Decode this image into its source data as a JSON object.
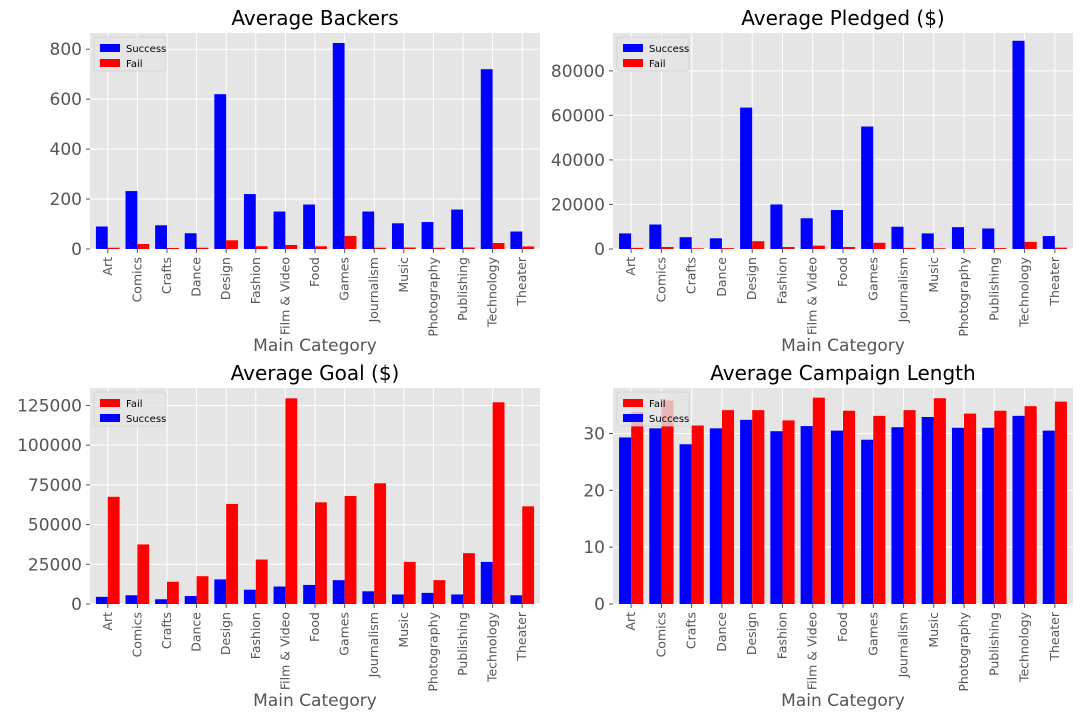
{
  "colors": {
    "success": "#0000ff",
    "fail": "#ff0000",
    "panel_bg": "#e5e5e5",
    "grid": "#ffffff",
    "text": "#555555",
    "title": "#000000"
  },
  "chart_data": [
    {
      "type": "bar",
      "title": "Average Backers",
      "xlabel": "Main Category",
      "ylabel": "",
      "grid": true,
      "legend": {
        "position": "top-left",
        "entries": [
          "Success",
          "Fail"
        ]
      },
      "ylim": [
        0,
        865
      ],
      "yticks": [
        0,
        200,
        400,
        600,
        800
      ],
      "categories": [
        "Art",
        "Comics",
        "Crafts",
        "Dance",
        "Design",
        "Fashion",
        "Film & Video",
        "Food",
        "Games",
        "Journalism",
        "Music",
        "Photography",
        "Publishing",
        "Technology",
        "Theater"
      ],
      "series": [
        {
          "name": "Success",
          "color": "#0000ff",
          "values": [
            90,
            232,
            95,
            63,
            620,
            220,
            150,
            178,
            825,
            150,
            103,
            108,
            158,
            720,
            70
          ]
        },
        {
          "name": "Fail",
          "color": "#ff0000",
          "values": [
            5,
            20,
            4,
            5,
            35,
            11,
            16,
            11,
            52,
            5,
            6,
            5,
            6,
            24,
            10
          ]
        }
      ]
    },
    {
      "type": "bar",
      "title": "Average Pledged ($)",
      "xlabel": "Main Category",
      "ylabel": "",
      "grid": true,
      "legend": {
        "position": "top-left",
        "entries": [
          "Success",
          "Fail"
        ]
      },
      "ylim": [
        0,
        97000
      ],
      "yticks": [
        0,
        20000,
        40000,
        60000,
        80000
      ],
      "categories": [
        "Art",
        "Comics",
        "Crafts",
        "Dance",
        "Design",
        "Fashion",
        "Film & Video",
        "Food",
        "Games",
        "Journalism",
        "Music",
        "Photography",
        "Publishing",
        "Technology",
        "Theater"
      ],
      "series": [
        {
          "name": "Success",
          "color": "#0000ff",
          "values": [
            7000,
            11000,
            5300,
            4800,
            63500,
            20000,
            13800,
            17500,
            55000,
            10000,
            7000,
            9800,
            9200,
            93500,
            5800
          ]
        },
        {
          "name": "Fail",
          "color": "#ff0000",
          "values": [
            500,
            900,
            300,
            400,
            3500,
            900,
            1500,
            900,
            2800,
            500,
            300,
            300,
            400,
            3200,
            600
          ]
        }
      ]
    },
    {
      "type": "bar",
      "title": "Average Goal ($)",
      "xlabel": "Main Category",
      "ylabel": "",
      "grid": true,
      "legend": {
        "position": "top-left",
        "entries": [
          "Fail",
          "Success"
        ]
      },
      "ylim": [
        0,
        136000
      ],
      "yticks": [
        0,
        25000,
        50000,
        75000,
        100000,
        125000
      ],
      "categories": [
        "Art",
        "Comics",
        "Crafts",
        "Dance",
        "Design",
        "Fashion",
        "Film & Video",
        "Food",
        "Games",
        "Journalism",
        "Music",
        "Photography",
        "Publishing",
        "Technology",
        "Theater"
      ],
      "series": [
        {
          "name": "Success",
          "color": "#0000ff",
          "values": [
            4500,
            5500,
            3000,
            5000,
            15500,
            9000,
            11000,
            12000,
            15000,
            8000,
            6000,
            7000,
            6000,
            26500,
            5500
          ]
        },
        {
          "name": "Fail",
          "color": "#ff0000",
          "values": [
            67500,
            37500,
            14000,
            17500,
            63000,
            28000,
            129500,
            64000,
            68000,
            76000,
            26500,
            15000,
            32000,
            127000,
            61500
          ]
        }
      ]
    },
    {
      "type": "bar",
      "title": "Average Campaign Length",
      "xlabel": "Main Category",
      "ylabel": "",
      "grid": true,
      "legend": {
        "position": "top-left",
        "entries": [
          "Fail",
          "Success"
        ]
      },
      "ylim": [
        0,
        38
      ],
      "yticks": [
        0,
        10,
        20,
        30
      ],
      "categories": [
        "Art",
        "Comics",
        "Crafts",
        "Dance",
        "Design",
        "Fashion",
        "Film & Video",
        "Food",
        "Games",
        "Journalism",
        "Music",
        "Photography",
        "Publishing",
        "Technology",
        "Theater"
      ],
      "series": [
        {
          "name": "Success",
          "color": "#0000ff",
          "values": [
            29.3,
            30.9,
            28.1,
            30.9,
            32.4,
            30.4,
            31.3,
            30.5,
            28.9,
            31.1,
            32.9,
            31.0,
            31.0,
            33.1,
            30.5
          ]
        },
        {
          "name": "Fail",
          "color": "#ff0000",
          "values": [
            33.8,
            35.8,
            31.4,
            34.1,
            34.1,
            32.3,
            36.3,
            34.0,
            33.1,
            34.1,
            36.2,
            33.5,
            34.0,
            34.8,
            35.6
          ]
        }
      ]
    }
  ]
}
